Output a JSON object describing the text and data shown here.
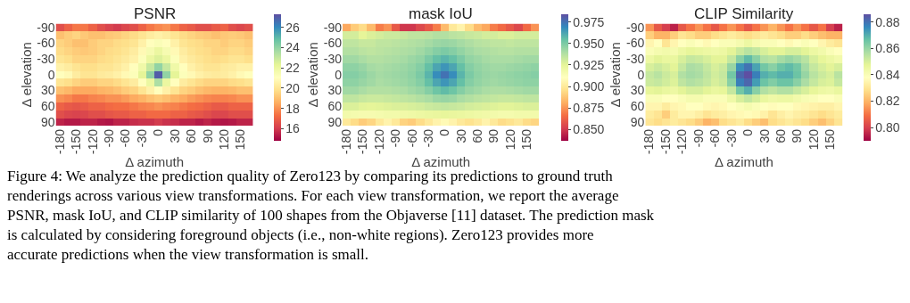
{
  "chart_data": [
    {
      "type": "heatmap",
      "title": "PSNR",
      "xlabel": "Δ azimuth",
      "ylabel": "Δ elevation",
      "categories": [
        "-180",
        null,
        "-150",
        null,
        "-120",
        null,
        "-90",
        null,
        "-60",
        null,
        "-30",
        null,
        "0",
        null,
        "30",
        null,
        "60",
        null,
        "90",
        null,
        "120",
        null,
        "150",
        null
      ],
      "y_categories": [
        "-90",
        null,
        "-60",
        null,
        "-30",
        null,
        "0",
        null,
        "30",
        null,
        "60",
        null,
        "90"
      ],
      "cells": [
        [
          16.5,
          17.0,
          17.5,
          17.5,
          17.0,
          16.5,
          16.2,
          16.0,
          16.3,
          16.5,
          17.0,
          17.5,
          17.8,
          18.0,
          17.5,
          17.0,
          16.8,
          16.5,
          16.5,
          16.8,
          17.0,
          16.5,
          16.3,
          16.5
        ],
        [
          19.0,
          19.3,
          19.5,
          19.2,
          19.0,
          19.0,
          19.2,
          19.3,
          19.5,
          19.7,
          20.0,
          20.3,
          20.5,
          20.3,
          20.0,
          19.7,
          19.5,
          19.3,
          19.2,
          19.0,
          19.2,
          19.3,
          19.2,
          19.0
        ],
        [
          19.5,
          19.3,
          19.0,
          19.0,
          19.3,
          19.5,
          19.5,
          19.7,
          19.8,
          20.0,
          20.5,
          21.0,
          21.3,
          21.0,
          20.5,
          20.0,
          19.8,
          19.7,
          19.5,
          19.5,
          19.3,
          19.5,
          19.5,
          19.3
        ],
        [
          19.7,
          19.5,
          19.3,
          19.2,
          19.3,
          19.5,
          19.7,
          19.8,
          20.0,
          20.3,
          20.8,
          21.5,
          22.0,
          21.5,
          20.8,
          20.3,
          20.0,
          19.8,
          19.7,
          19.5,
          19.5,
          19.7,
          19.7,
          19.5
        ],
        [
          20.0,
          19.8,
          19.5,
          19.5,
          19.5,
          19.7,
          19.8,
          20.0,
          20.2,
          20.5,
          21.2,
          22.0,
          22.5,
          22.0,
          21.2,
          20.5,
          20.2,
          20.0,
          19.8,
          19.7,
          19.8,
          20.0,
          20.0,
          19.8
        ],
        [
          20.5,
          20.3,
          20.0,
          19.8,
          19.8,
          20.0,
          20.0,
          20.2,
          20.5,
          21.0,
          21.8,
          23.0,
          24.0,
          23.0,
          21.8,
          21.0,
          20.5,
          20.2,
          20.0,
          20.0,
          20.2,
          20.3,
          20.5,
          20.5
        ],
        [
          21.0,
          20.8,
          20.3,
          20.0,
          20.0,
          20.2,
          20.3,
          20.5,
          20.8,
          21.2,
          22.3,
          24.0,
          27.0,
          24.0,
          22.3,
          21.2,
          20.8,
          20.5,
          20.3,
          20.2,
          20.3,
          20.5,
          20.8,
          21.0
        ],
        [
          20.0,
          19.8,
          19.5,
          19.3,
          19.3,
          19.5,
          19.5,
          19.7,
          20.0,
          20.3,
          21.0,
          22.0,
          23.5,
          22.0,
          21.0,
          20.3,
          20.0,
          19.7,
          19.5,
          19.5,
          19.5,
          19.7,
          19.8,
          20.0
        ],
        [
          19.0,
          18.8,
          18.5,
          18.5,
          18.5,
          18.7,
          18.8,
          19.0,
          19.3,
          19.5,
          20.0,
          20.5,
          21.0,
          20.5,
          20.0,
          19.5,
          19.3,
          19.0,
          18.8,
          18.7,
          18.7,
          18.8,
          19.0,
          19.0
        ],
        [
          18.0,
          17.8,
          17.5,
          17.5,
          17.7,
          17.8,
          18.0,
          18.0,
          18.2,
          18.5,
          18.7,
          19.0,
          19.2,
          19.0,
          18.7,
          18.5,
          18.2,
          18.0,
          17.8,
          17.7,
          17.7,
          17.8,
          18.0,
          18.0
        ],
        [
          17.0,
          16.8,
          16.7,
          16.8,
          17.0,
          17.0,
          17.2,
          17.3,
          17.3,
          17.5,
          17.7,
          17.8,
          18.0,
          17.8,
          17.7,
          17.5,
          17.3,
          17.2,
          17.0,
          16.8,
          16.8,
          17.0,
          17.0,
          17.0
        ],
        [
          16.5,
          16.3,
          16.2,
          16.3,
          16.5,
          16.5,
          16.7,
          16.8,
          16.8,
          17.0,
          17.0,
          17.2,
          17.2,
          17.2,
          17.0,
          17.0,
          16.8,
          16.7,
          16.5,
          16.3,
          16.3,
          16.5,
          16.5,
          16.5
        ],
        [
          15.5,
          15.3,
          15.3,
          15.5,
          15.5,
          15.3,
          15.2,
          15.5,
          15.5,
          15.7,
          15.8,
          15.8,
          16.0,
          15.8,
          15.7,
          15.5,
          15.5,
          15.3,
          15.5,
          15.3,
          15.2,
          15.3,
          15.5,
          15.5
        ]
      ],
      "clim": [
        14.8,
        27.3
      ],
      "cticks": [
        16,
        18,
        20,
        22,
        24,
        26
      ],
      "annotations": [
        "Figure 4: We analyze the prediction quality of Zero123 by comparing its predictions to ground truth renderings across various view transformations. For each view transformation, we report the average PSNR, mask IoU, and CLIP similarity of 100 shapes from the Objaverse [11] dataset. The prediction mask is calculated by considering foreground objects (i.e., non-white regions). Zero123 provides more accurate predictions when the view transformation is small."
      ]
    },
    {
      "type": "heatmap",
      "title": "mask IoU",
      "xlabel": "Δ azimuth",
      "ylabel": "Δ elevation",
      "categories": [
        "-180",
        null,
        "-150",
        null,
        "-120",
        null,
        "-90",
        null,
        "-60",
        null,
        "-30",
        null,
        "0",
        null,
        "30",
        null,
        "60",
        null,
        "90",
        null,
        "120",
        null,
        "150",
        null
      ],
      "y_categories": [
        "-90",
        null,
        "-60",
        null,
        "-30",
        null,
        "0",
        null,
        "30",
        null,
        "60",
        null,
        "90"
      ],
      "cells": [
        [
          0.88,
          0.89,
          0.895,
          0.885,
          0.87,
          0.875,
          0.86,
          0.85,
          0.85,
          0.855,
          0.86,
          0.87,
          0.885,
          0.9,
          0.905,
          0.895,
          0.885,
          0.88,
          0.87,
          0.865,
          0.86,
          0.855,
          0.865,
          0.875
        ],
        [
          0.93,
          0.93,
          0.925,
          0.928,
          0.93,
          0.932,
          0.932,
          0.933,
          0.935,
          0.935,
          0.936,
          0.938,
          0.938,
          0.936,
          0.935,
          0.933,
          0.932,
          0.93,
          0.93,
          0.928,
          0.928,
          0.93,
          0.93,
          0.93
        ],
        [
          0.935,
          0.935,
          0.933,
          0.933,
          0.935,
          0.935,
          0.936,
          0.937,
          0.938,
          0.939,
          0.941,
          0.943,
          0.944,
          0.943,
          0.941,
          0.939,
          0.937,
          0.936,
          0.935,
          0.935,
          0.934,
          0.935,
          0.935,
          0.935
        ],
        [
          0.938,
          0.938,
          0.936,
          0.935,
          0.936,
          0.937,
          0.938,
          0.939,
          0.94,
          0.942,
          0.945,
          0.948,
          0.95,
          0.948,
          0.945,
          0.942,
          0.94,
          0.939,
          0.938,
          0.937,
          0.937,
          0.938,
          0.938,
          0.938
        ],
        [
          0.942,
          0.942,
          0.94,
          0.938,
          0.938,
          0.939,
          0.94,
          0.941,
          0.943,
          0.945,
          0.95,
          0.955,
          0.958,
          0.955,
          0.95,
          0.945,
          0.943,
          0.941,
          0.94,
          0.94,
          0.94,
          0.941,
          0.942,
          0.942
        ],
        [
          0.946,
          0.946,
          0.944,
          0.941,
          0.94,
          0.941,
          0.942,
          0.943,
          0.945,
          0.948,
          0.955,
          0.962,
          0.966,
          0.962,
          0.955,
          0.948,
          0.945,
          0.943,
          0.942,
          0.942,
          0.943,
          0.944,
          0.945,
          0.946
        ],
        [
          0.948,
          0.948,
          0.946,
          0.943,
          0.941,
          0.942,
          0.943,
          0.944,
          0.946,
          0.95,
          0.958,
          0.968,
          0.975,
          0.968,
          0.958,
          0.95,
          0.946,
          0.944,
          0.943,
          0.944,
          0.945,
          0.946,
          0.947,
          0.948
        ],
        [
          0.946,
          0.946,
          0.944,
          0.942,
          0.94,
          0.941,
          0.942,
          0.943,
          0.945,
          0.948,
          0.955,
          0.962,
          0.966,
          0.962,
          0.955,
          0.948,
          0.945,
          0.943,
          0.942,
          0.943,
          0.944,
          0.945,
          0.946,
          0.946
        ],
        [
          0.942,
          0.942,
          0.94,
          0.938,
          0.938,
          0.938,
          0.939,
          0.94,
          0.942,
          0.944,
          0.948,
          0.953,
          0.956,
          0.953,
          0.948,
          0.944,
          0.942,
          0.94,
          0.939,
          0.939,
          0.94,
          0.941,
          0.942,
          0.942
        ],
        [
          0.935,
          0.935,
          0.933,
          0.932,
          0.932,
          0.933,
          0.934,
          0.935,
          0.936,
          0.938,
          0.94,
          0.943,
          0.944,
          0.943,
          0.94,
          0.938,
          0.936,
          0.935,
          0.934,
          0.933,
          0.933,
          0.934,
          0.935,
          0.935
        ],
        [
          0.928,
          0.928,
          0.926,
          0.925,
          0.926,
          0.927,
          0.928,
          0.928,
          0.929,
          0.93,
          0.932,
          0.933,
          0.934,
          0.933,
          0.932,
          0.93,
          0.929,
          0.928,
          0.927,
          0.926,
          0.926,
          0.927,
          0.928,
          0.928
        ],
        [
          0.918,
          0.917,
          0.916,
          0.916,
          0.917,
          0.918,
          0.918,
          0.919,
          0.92,
          0.921,
          0.922,
          0.923,
          0.924,
          0.923,
          0.922,
          0.921,
          0.92,
          0.919,
          0.918,
          0.917,
          0.917,
          0.918,
          0.918,
          0.918
        ],
        [
          0.9,
          0.895,
          0.89,
          0.893,
          0.9,
          0.905,
          0.9,
          0.892,
          0.89,
          0.895,
          0.9,
          0.905,
          0.908,
          0.905,
          0.9,
          0.897,
          0.9,
          0.905,
          0.9,
          0.895,
          0.897,
          0.9,
          0.895,
          0.893
        ]
      ],
      "clim": [
        0.837,
        0.984
      ],
      "cticks": [
        {
          "value": 0.85,
          "label": "0.850"
        },
        {
          "value": 0.875,
          "label": "0.875"
        },
        {
          "value": 0.9,
          "label": "0.900"
        },
        {
          "value": 0.925,
          "label": "0.925"
        },
        {
          "value": 0.95,
          "label": "0.950"
        },
        {
          "value": 0.975,
          "label": "0.975"
        }
      ]
    },
    {
      "type": "heatmap",
      "title": "CLIP Similarity",
      "xlabel": "Δ azimuth",
      "ylabel": "Δ elevation",
      "categories": [
        "-180",
        null,
        "-150",
        null,
        "-120",
        null,
        "-90",
        null,
        "-60",
        null,
        "-30",
        null,
        "0",
        null,
        "30",
        null,
        "60",
        null,
        "90",
        null,
        "120",
        null,
        "150",
        null
      ],
      "y_categories": [
        "-90",
        null,
        "-60",
        null,
        "-30",
        null,
        "0",
        null,
        "30",
        null,
        "60",
        null,
        "90"
      ],
      "cells": [
        [
          0.815,
          0.805,
          0.8,
          0.795,
          0.805,
          0.81,
          0.815,
          0.81,
          0.805,
          0.81,
          0.815,
          0.81,
          0.805,
          0.81,
          0.815,
          0.82,
          0.815,
          0.81,
          0.815,
          0.81,
          0.805,
          0.81,
          0.8,
          0.795
        ],
        [
          0.825,
          0.82,
          0.82,
          0.825,
          0.83,
          0.828,
          0.825,
          0.825,
          0.828,
          0.83,
          0.832,
          0.83,
          0.828,
          0.83,
          0.832,
          0.83,
          0.828,
          0.825,
          0.825,
          0.828,
          0.825,
          0.822,
          0.82,
          0.82
        ],
        [
          0.835,
          0.838,
          0.83,
          0.835,
          0.838,
          0.84,
          0.838,
          0.836,
          0.838,
          0.84,
          0.84,
          0.842,
          0.845,
          0.842,
          0.84,
          0.84,
          0.838,
          0.836,
          0.838,
          0.84,
          0.838,
          0.835,
          0.832,
          0.83
        ],
        [
          0.84,
          0.842,
          0.843,
          0.842,
          0.845,
          0.847,
          0.846,
          0.845,
          0.844,
          0.845,
          0.848,
          0.852,
          0.855,
          0.853,
          0.85,
          0.848,
          0.848,
          0.85,
          0.85,
          0.848,
          0.845,
          0.843,
          0.84,
          0.838
        ],
        [
          0.845,
          0.848,
          0.846,
          0.846,
          0.85,
          0.853,
          0.852,
          0.85,
          0.848,
          0.848,
          0.853,
          0.862,
          0.868,
          0.862,
          0.856,
          0.855,
          0.858,
          0.86,
          0.858,
          0.855,
          0.85,
          0.847,
          0.845,
          0.843
        ],
        [
          0.85,
          0.852,
          0.85,
          0.848,
          0.853,
          0.857,
          0.856,
          0.853,
          0.85,
          0.852,
          0.86,
          0.875,
          0.88,
          0.872,
          0.865,
          0.862,
          0.866,
          0.868,
          0.865,
          0.858,
          0.853,
          0.85,
          0.848,
          0.85
        ],
        [
          0.853,
          0.855,
          0.852,
          0.85,
          0.856,
          0.858,
          0.857,
          0.854,
          0.851,
          0.853,
          0.865,
          0.882,
          0.886,
          0.878,
          0.87,
          0.868,
          0.87,
          0.87,
          0.866,
          0.86,
          0.855,
          0.852,
          0.85,
          0.855
        ],
        [
          0.852,
          0.853,
          0.851,
          0.849,
          0.854,
          0.856,
          0.855,
          0.853,
          0.85,
          0.852,
          0.862,
          0.878,
          0.882,
          0.873,
          0.866,
          0.863,
          0.866,
          0.866,
          0.862,
          0.857,
          0.853,
          0.85,
          0.849,
          0.853
        ],
        [
          0.847,
          0.848,
          0.846,
          0.845,
          0.848,
          0.85,
          0.85,
          0.848,
          0.846,
          0.847,
          0.853,
          0.865,
          0.87,
          0.862,
          0.856,
          0.854,
          0.856,
          0.856,
          0.853,
          0.85,
          0.847,
          0.845,
          0.844,
          0.846
        ],
        [
          0.84,
          0.84,
          0.838,
          0.838,
          0.84,
          0.842,
          0.842,
          0.84,
          0.84,
          0.84,
          0.844,
          0.85,
          0.853,
          0.85,
          0.846,
          0.844,
          0.845,
          0.845,
          0.843,
          0.841,
          0.84,
          0.838,
          0.838,
          0.84
        ],
        [
          0.835,
          0.835,
          0.832,
          0.835,
          0.836,
          0.838,
          0.838,
          0.836,
          0.835,
          0.836,
          0.838,
          0.84,
          0.842,
          0.84,
          0.838,
          0.837,
          0.838,
          0.838,
          0.836,
          0.835,
          0.834,
          0.833,
          0.833,
          0.835
        ],
        [
          0.832,
          0.83,
          0.825,
          0.832,
          0.835,
          0.835,
          0.833,
          0.83,
          0.832,
          0.833,
          0.835,
          0.836,
          0.837,
          0.836,
          0.834,
          0.83,
          0.833,
          0.835,
          0.833,
          0.832,
          0.83,
          0.828,
          0.83,
          0.832
        ],
        [
          0.83,
          0.828,
          0.83,
          0.832,
          0.83,
          0.828,
          0.825,
          0.82,
          0.822,
          0.828,
          0.83,
          0.832,
          0.828,
          0.825,
          0.822,
          0.828,
          0.83,
          0.832,
          0.83,
          0.828,
          0.825,
          0.822,
          0.826,
          0.83
        ]
      ],
      "clim": [
        0.79,
        0.886
      ],
      "cticks": [
        {
          "value": 0.8,
          "label": "0.80"
        },
        {
          "value": 0.82,
          "label": "0.82"
        },
        {
          "value": 0.84,
          "label": "0.84"
        },
        {
          "value": 0.86,
          "label": "0.86"
        },
        {
          "value": 0.88,
          "label": "0.88"
        }
      ]
    }
  ]
}
